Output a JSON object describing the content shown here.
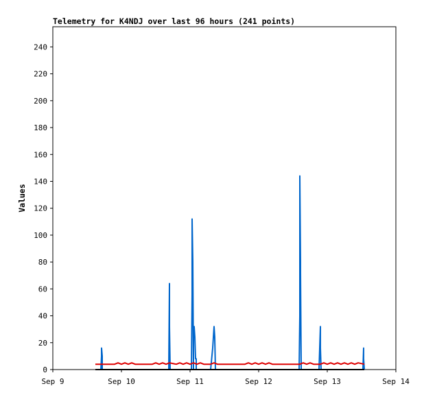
{
  "chart_data": {
    "type": "line",
    "title": "Telemetry for K4NDJ over last 96 hours (241 points)",
    "xlabel": "",
    "ylabel": "Values",
    "x_ticks": [
      "Sep 9",
      "Sep 10",
      "Sep 11",
      "Sep 12",
      "Sep 13",
      "Sep 14"
    ],
    "y_ticks": [
      0,
      20,
      40,
      60,
      80,
      100,
      120,
      140,
      160,
      180,
      200,
      220,
      240
    ],
    "xlim_days": [
      0,
      5
    ],
    "ylim": [
      0,
      255
    ],
    "grid": false,
    "legend": "none",
    "series": [
      {
        "color": "#0066cc",
        "x": [
          0.62,
          0.7,
          0.71,
          0.71,
          0.72,
          0.72,
          0.73,
          0.74,
          0.75,
          1.2,
          1.3,
          1.35,
          1.4,
          1.45,
          1.5,
          1.55,
          1.6,
          1.65,
          1.68,
          1.69,
          1.7,
          1.7,
          1.71,
          1.72,
          1.73,
          1.78,
          1.85,
          1.9,
          1.95,
          2.0,
          2.02,
          2.03,
          2.03,
          2.04,
          2.05,
          2.05,
          2.06,
          2.07,
          2.08,
          2.09,
          2.09,
          2.1,
          2.11,
          2.12,
          2.13,
          2.14,
          2.15,
          2.18,
          2.2,
          2.25,
          2.3,
          2.33,
          2.34,
          2.35,
          2.36,
          2.37,
          2.4,
          2.5,
          2.6,
          2.7,
          2.8,
          2.9,
          3.0,
          3.1,
          3.2,
          3.3,
          3.4,
          3.5,
          3.55,
          3.58,
          3.59,
          3.6,
          3.6,
          3.61,
          3.61,
          3.62,
          3.63,
          3.64,
          3.7,
          3.8,
          3.85,
          3.88,
          3.89,
          3.9,
          3.9,
          3.91,
          3.92,
          3.95,
          4.0,
          4.1,
          4.2,
          4.3,
          4.4,
          4.5,
          4.52,
          4.53,
          4.53,
          4.54
        ],
        "y": [
          0,
          0,
          10,
          16,
          10,
          0,
          0,
          0,
          0,
          0,
          0,
          0,
          0,
          0,
          0,
          0,
          0,
          0,
          0,
          0,
          64,
          32,
          0,
          0,
          0,
          0,
          0,
          0,
          0,
          0,
          0,
          56,
          112,
          80,
          0,
          24,
          32,
          24,
          8,
          8,
          0,
          0,
          0,
          0,
          0,
          0,
          0,
          0,
          0,
          0,
          0,
          16,
          24,
          32,
          24,
          0,
          0,
          0,
          0,
          0,
          0,
          0,
          0,
          0,
          0,
          0,
          0,
          0,
          0,
          0,
          0,
          40,
          144,
          80,
          72,
          0,
          0,
          0,
          0,
          0,
          0,
          0,
          16,
          32,
          16,
          0,
          0,
          0,
          0,
          0,
          0,
          0,
          0,
          0,
          0,
          16,
          8,
          0
        ]
      },
      {
        "color": "#000000",
        "x": [
          0.62,
          4.54
        ],
        "y": [
          0,
          0
        ]
      },
      {
        "color": "#dd0000",
        "x": [
          0.62,
          0.9,
          0.95,
          1.0,
          1.05,
          1.1,
          1.15,
          1.2,
          1.45,
          1.5,
          1.55,
          1.6,
          1.65,
          1.7,
          1.8,
          1.85,
          1.9,
          1.95,
          2.0,
          2.05,
          2.1,
          2.15,
          2.2,
          2.3,
          2.35,
          2.4,
          2.5,
          2.6,
          2.7,
          2.8,
          2.85,
          2.9,
          2.95,
          3.0,
          3.05,
          3.1,
          3.15,
          3.2,
          3.3,
          3.4,
          3.5,
          3.6,
          3.65,
          3.7,
          3.75,
          3.8,
          3.9,
          3.95,
          4.0,
          4.05,
          4.1,
          4.15,
          4.2,
          4.25,
          4.3,
          4.35,
          4.4,
          4.45,
          4.54
        ],
        "y": [
          4,
          4,
          5,
          4,
          5,
          4,
          5,
          4,
          4,
          5,
          4,
          5,
          4,
          5,
          4,
          5,
          4,
          5,
          4,
          5,
          4,
          5,
          4,
          4,
          5,
          4,
          4,
          4,
          4,
          4,
          5,
          4,
          5,
          4,
          5,
          4,
          5,
          4,
          4,
          4,
          4,
          4,
          5,
          4,
          5,
          4,
          4,
          5,
          4,
          5,
          4,
          5,
          4,
          5,
          4,
          5,
          4,
          5,
          4
        ]
      }
    ]
  }
}
